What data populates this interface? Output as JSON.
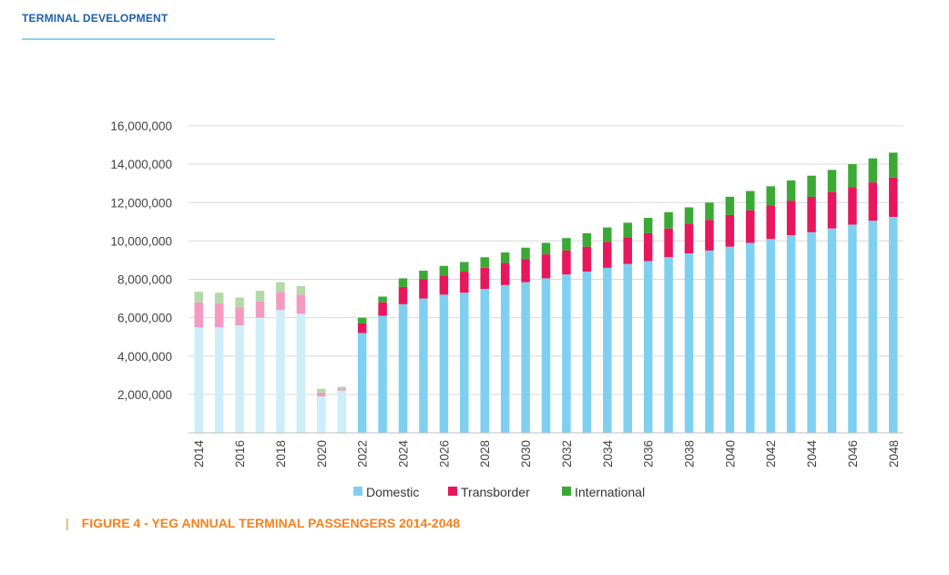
{
  "header": {
    "title": "TERMINAL DEVELOPMENT"
  },
  "caption": {
    "bar": "|",
    "text": "FIGURE 4 - YEG ANNUAL TERMINAL PASSENGERS 2014-2048"
  },
  "chart_data": {
    "type": "bar",
    "stacked": true,
    "x": [
      2014,
      2015,
      2016,
      2017,
      2018,
      2019,
      2020,
      2021,
      2022,
      2023,
      2024,
      2025,
      2026,
      2027,
      2028,
      2029,
      2030,
      2031,
      2032,
      2033,
      2034,
      2035,
      2036,
      2037,
      2038,
      2039,
      2040,
      2041,
      2042,
      2043,
      2044,
      2045,
      2046,
      2047,
      2048
    ],
    "historical_through": 2021,
    "xticks": [
      "2014",
      "2016",
      "2018",
      "2020",
      "2022",
      "2024",
      "2026",
      "2028",
      "2030",
      "2032",
      "2034",
      "2036",
      "2038",
      "2040",
      "2042",
      "2044",
      "2046",
      "2048"
    ],
    "ylim": [
      0,
      16000000
    ],
    "yticks": [
      "2,000,000",
      "4,000,000",
      "6,000,000",
      "8,000,000",
      "10,000,000",
      "12,000,000",
      "14,000,000",
      "16,000,000"
    ],
    "ytick_values": [
      2000000,
      4000000,
      6000000,
      8000000,
      10000000,
      12000000,
      14000000,
      16000000
    ],
    "grid": true,
    "legend_position": "bottom",
    "series": [
      {
        "name": "Domestic",
        "color": "#7fd0f0",
        "historical_color": "#cdeef8",
        "values": [
          5500000,
          5500000,
          5600000,
          6000000,
          6400000,
          6200000,
          1900000,
          2200000,
          5200000,
          6100000,
          6700000,
          7000000,
          7200000,
          7300000,
          7500000,
          7700000,
          7850000,
          8050000,
          8250000,
          8400000,
          8600000,
          8800000,
          8950000,
          9150000,
          9350000,
          9500000,
          9700000,
          9900000,
          10100000,
          10300000,
          10450000,
          10650000,
          10850000,
          11050000,
          11250000
        ]
      },
      {
        "name": "Transborder",
        "color": "#e8175d",
        "historical_color": "#f49ac1",
        "values": [
          1300000,
          1250000,
          950000,
          850000,
          950000,
          1000000,
          200000,
          100000,
          500000,
          700000,
          900000,
          1000000,
          1000000,
          1100000,
          1100000,
          1150000,
          1200000,
          1250000,
          1250000,
          1300000,
          1350000,
          1400000,
          1450000,
          1500000,
          1550000,
          1600000,
          1650000,
          1700000,
          1750000,
          1800000,
          1850000,
          1900000,
          1950000,
          2000000,
          2050000
        ]
      },
      {
        "name": "International",
        "color": "#3aaa35",
        "historical_color": "#b3d9a6",
        "values": [
          550000,
          550000,
          500000,
          550000,
          500000,
          450000,
          200000,
          100000,
          300000,
          300000,
          450000,
          450000,
          500000,
          500000,
          550000,
          550000,
          600000,
          600000,
          650000,
          700000,
          750000,
          750000,
          800000,
          850000,
          850000,
          900000,
          950000,
          1000000,
          1000000,
          1050000,
          1100000,
          1150000,
          1200000,
          1250000,
          1300000
        ]
      }
    ]
  }
}
